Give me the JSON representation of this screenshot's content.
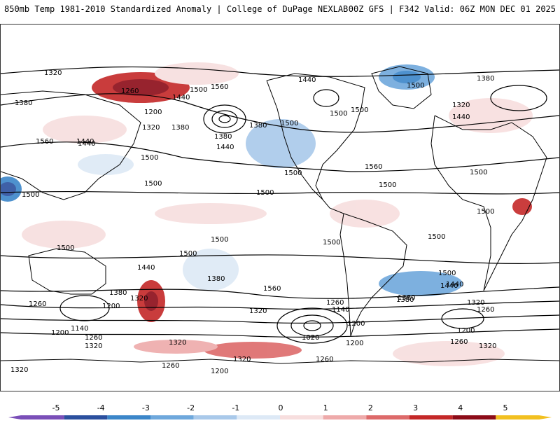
{
  "header": {
    "title": "850mb Temp 1981-2010 Standardized Anomaly | College of DuPage NEXLAB",
    "run_info": "00Z GFS | F342 Valid: 06Z MON DEC 01 2025"
  },
  "colorbar": {
    "ticks": [
      "-5",
      "-4",
      "-3",
      "-2",
      "-1",
      "0",
      "1",
      "2",
      "3",
      "4",
      "5"
    ],
    "colors": [
      "#7a4fb8",
      "#2b4f9e",
      "#3b86c9",
      "#6fa8dc",
      "#a9c9ea",
      "#dde9f6",
      "#f7dede",
      "#eeaaaa",
      "#dd6a6a",
      "#c42828",
      "#8c0c18",
      "#f2c020"
    ]
  },
  "contour_labels": [
    "1320",
    "1260",
    "1200",
    "1380",
    "1440",
    "1500",
    "1560",
    "1380",
    "1320",
    "1440",
    "1380",
    "1500",
    "1440",
    "1500",
    "1380",
    "1500",
    "1320",
    "1440",
    "1380",
    "1500",
    "1440",
    "1500",
    "1560",
    "1500",
    "1500",
    "1500",
    "1500",
    "1500",
    "1500",
    "1500",
    "1560",
    "1500",
    "1500",
    "1440",
    "1380",
    "1320",
    "1260",
    "1200",
    "1140",
    "1320",
    "1380",
    "1440",
    "1320",
    "1380",
    "1260",
    "1200",
    "1260",
    "1200",
    "1140",
    "1020",
    "1320",
    "1260",
    "1200",
    "1320",
    "1260",
    "1380",
    "1440",
    "1500",
    "1320",
    "1260",
    "1200",
    "1320",
    "1260",
    "1200",
    "1320",
    "1560",
    "1440",
    "1500",
    "1500",
    "1500"
  ]
}
